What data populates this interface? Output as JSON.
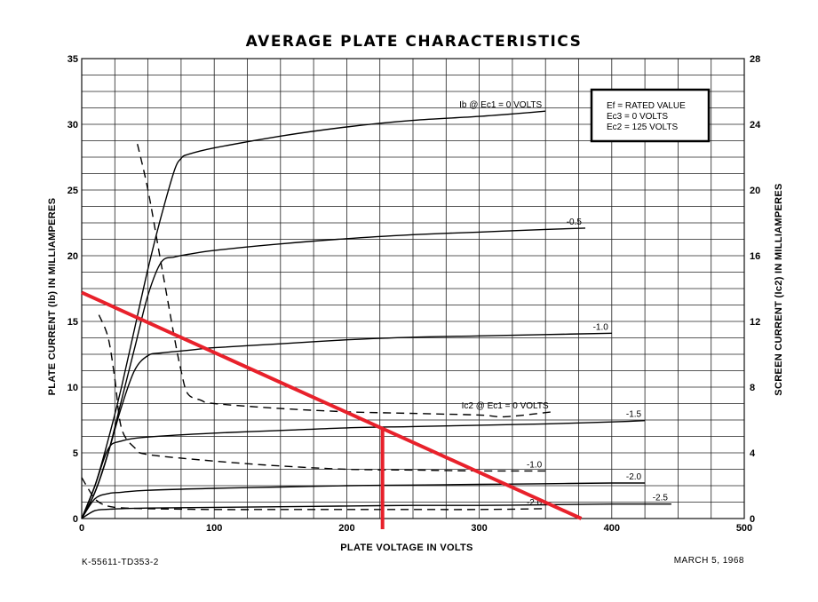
{
  "chart_data": {
    "type": "line",
    "title": "AVERAGE PLATE CHARACTERISTICS",
    "xlabel": "PLATE VOLTAGE IN VOLTS",
    "ylabel_left": "PLATE CURRENT (Ib) IN MILLIAMPERES",
    "ylabel_right": "SCREEN CURRENT (Ic2) IN MILLIAMPERES",
    "xlim": [
      0,
      500
    ],
    "ylim_left": [
      0,
      35
    ],
    "ylim_right": [
      0,
      28
    ],
    "x_ticks": [
      0,
      100,
      200,
      300,
      400,
      500
    ],
    "y_left_ticks": [
      0,
      5,
      10,
      15,
      20,
      25,
      30,
      35
    ],
    "y_right_ticks": [
      0,
      4,
      8,
      12,
      16,
      20,
      24,
      28
    ],
    "grid": true,
    "legend_box": {
      "lines": [
        "Ef = RATED VALUE",
        "Ec3 = 0 VOLTS",
        "Ec2 = 125 VOLTS"
      ],
      "placement": "top-right"
    },
    "plate_series": [
      {
        "name": "Ib @ Ec1 = 0 VOLTS",
        "label": "Ib @ Ec1 = 0 VOLTS",
        "style": "solid",
        "x": [
          0,
          10,
          20,
          30,
          40,
          50,
          60,
          70,
          75,
          80,
          100,
          150,
          200,
          250,
          300,
          350
        ],
        "y": [
          0,
          2.5,
          6,
          10,
          14.5,
          19,
          23,
          26.5,
          27.4,
          27.7,
          28.2,
          29.1,
          29.8,
          30.3,
          30.6,
          31
        ]
      },
      {
        "name": "Ec1 = -0.5",
        "label": "-0.5",
        "style": "solid",
        "x": [
          0,
          10,
          20,
          30,
          40,
          50,
          60,
          70,
          80,
          100,
          150,
          200,
          250,
          300,
          350,
          380
        ],
        "y": [
          0,
          2,
          5,
          9,
          13,
          17,
          19.5,
          19.9,
          20.1,
          20.4,
          20.9,
          21.3,
          21.6,
          21.8,
          22,
          22.1
        ]
      },
      {
        "name": "Ec1 = -1.0",
        "label": "-1.0",
        "style": "solid",
        "x": [
          0,
          10,
          20,
          30,
          40,
          50,
          60,
          80,
          100,
          150,
          200,
          250,
          300,
          350,
          400
        ],
        "y": [
          0,
          2,
          5,
          8.5,
          11.3,
          12.4,
          12.6,
          12.8,
          13,
          13.3,
          13.6,
          13.8,
          13.9,
          14,
          14.1
        ]
      },
      {
        "name": "Ec1 = -1.5",
        "label": "-1.5",
        "style": "solid",
        "x": [
          0,
          10,
          20,
          30,
          50,
          100,
          150,
          200,
          250,
          300,
          350,
          400,
          425
        ],
        "y": [
          0,
          2.5,
          5.3,
          5.9,
          6.2,
          6.5,
          6.7,
          6.9,
          7,
          7.1,
          7.2,
          7.35,
          7.45
        ]
      },
      {
        "name": "Ec1 = -2.0",
        "label": "-2.0",
        "style": "solid",
        "x": [
          0,
          10,
          20,
          30,
          50,
          100,
          150,
          200,
          250,
          300,
          350,
          400,
          425
        ],
        "y": [
          0,
          1.5,
          1.9,
          2,
          2.15,
          2.3,
          2.4,
          2.5,
          2.55,
          2.6,
          2.65,
          2.7,
          2.7
        ]
      },
      {
        "name": "Ec1 = -2.5",
        "label": "-2.5",
        "style": "solid",
        "x": [
          0,
          10,
          20,
          30,
          50,
          100,
          150,
          200,
          250,
          300,
          350,
          400,
          445
        ],
        "y": [
          0,
          0.6,
          0.7,
          0.75,
          0.8,
          0.85,
          0.9,
          0.95,
          1,
          1,
          1.05,
          1.1,
          1.1
        ]
      }
    ],
    "screen_series": [
      {
        "name": "Ic2 @ Ec1 = 0 VOLTS",
        "label": "Ic2 @ Ec1 = 0 VOLTS",
        "style": "dashed",
        "x": [
          42,
          50,
          60,
          70,
          75,
          80,
          90,
          100,
          150,
          200,
          250,
          300,
          320,
          355
        ],
        "y": [
          22.8,
          20,
          15.5,
          11,
          9,
          7.6,
          7.2,
          7,
          6.7,
          6.5,
          6.4,
          6.3,
          6.2,
          6.5
        ]
      },
      {
        "name": "Ic2 @ Ec1 = -1.0",
        "label": "-1.0",
        "style": "dashed",
        "x": [
          13,
          20,
          25,
          30,
          40,
          50,
          100,
          150,
          200,
          250,
          300,
          350
        ],
        "y": [
          12.4,
          11,
          8.5,
          5.5,
          4.3,
          3.9,
          3.5,
          3.2,
          3,
          2.95,
          2.9,
          2.9
        ]
      },
      {
        "name": "Ic2 @ Ec1 = -2.0",
        "label": "-2.0",
        "style": "dashed",
        "x": [
          0,
          5,
          10,
          15,
          20,
          30,
          50,
          100,
          150,
          200,
          250,
          300,
          350
        ],
        "y": [
          2.5,
          1.8,
          1.2,
          0.9,
          0.75,
          0.65,
          0.6,
          0.55,
          0.55,
          0.55,
          0.55,
          0.55,
          0.6
        ]
      }
    ],
    "annotations": {
      "load_line": {
        "color": "#e8212b",
        "from": [
          0,
          17.2
        ],
        "to": [
          377,
          0
        ]
      },
      "operating_point": {
        "color": "#e8212b",
        "x": 227,
        "y": 6.9
      }
    },
    "footer_left": "K-55611-TD353-2",
    "footer_right": "MARCH 5, 1968"
  }
}
